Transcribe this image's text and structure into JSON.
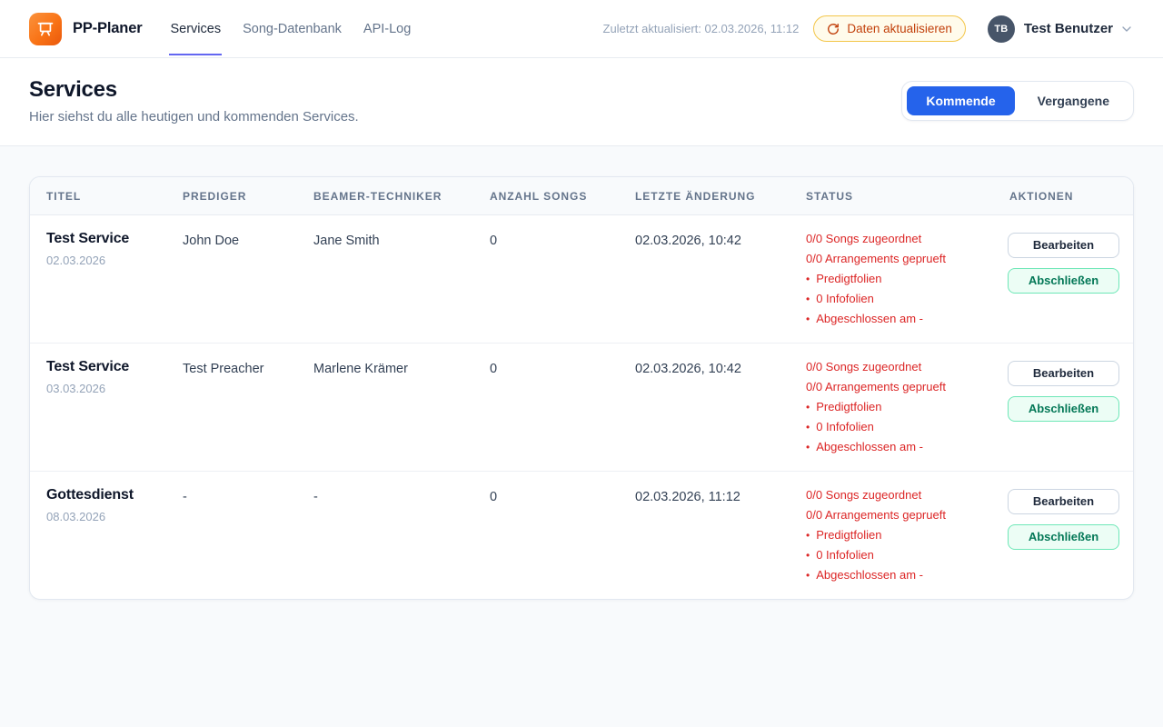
{
  "header": {
    "logo_text": "PP-Planer",
    "nav": [
      {
        "label": "Services",
        "active": true
      },
      {
        "label": "Song-Datenbank",
        "active": false
      },
      {
        "label": "API-Log",
        "active": false
      }
    ],
    "last_updated": "Zuletzt aktualisiert: 02.03.2026, 11:12",
    "refresh_label": "Daten aktualisieren",
    "user": {
      "initials": "TB",
      "name": "Test Benutzer"
    }
  },
  "page": {
    "title": "Services",
    "subtitle": "Hier siehst du alle heutigen und kommenden Services.",
    "filters": [
      {
        "label": "Kommende",
        "active": true
      },
      {
        "label": "Vergangene",
        "active": false
      }
    ]
  },
  "table": {
    "columns": [
      "TITEL",
      "PREDIGER",
      "BEAMER-TECHNIKER",
      "ANZAHL SONGS",
      "LETZTE ÄNDERUNG",
      "STATUS",
      "AKTIONEN"
    ],
    "rows": [
      {
        "title": "Test Service",
        "date": "02.03.2026",
        "preacher": "John Doe",
        "beamer": "Jane Smith",
        "song_count": "0",
        "last_modified": "02.03.2026, 10:42",
        "status": [
          {
            "bullet": false,
            "text": "0/0 Songs zugeordnet"
          },
          {
            "bullet": false,
            "text": "0/0 Arrangements geprueft"
          },
          {
            "bullet": true,
            "text": "Predigtfolien"
          },
          {
            "bullet": true,
            "text": "0 Infofolien"
          },
          {
            "bullet": true,
            "text": "Abgeschlossen am -"
          }
        ],
        "edit_label": "Bearbeiten",
        "complete_label": "Abschließen"
      },
      {
        "title": "Test Service",
        "date": "03.03.2026",
        "preacher": "Test Preacher",
        "beamer": "Marlene Krämer",
        "song_count": "0",
        "last_modified": "02.03.2026, 10:42",
        "status": [
          {
            "bullet": false,
            "text": "0/0 Songs zugeordnet"
          },
          {
            "bullet": false,
            "text": "0/0 Arrangements geprueft"
          },
          {
            "bullet": true,
            "text": "Predigtfolien"
          },
          {
            "bullet": true,
            "text": "0 Infofolien"
          },
          {
            "bullet": true,
            "text": "Abgeschlossen am -"
          }
        ],
        "edit_label": "Bearbeiten",
        "complete_label": "Abschließen"
      },
      {
        "title": "Gottesdienst",
        "date": "08.03.2026",
        "preacher": "-",
        "beamer": "-",
        "song_count": "0",
        "last_modified": "02.03.2026, 11:12",
        "status": [
          {
            "bullet": false,
            "text": "0/0 Songs zugeordnet"
          },
          {
            "bullet": false,
            "text": "0/0 Arrangements geprueft"
          },
          {
            "bullet": true,
            "text": "Predigtfolien"
          },
          {
            "bullet": true,
            "text": "0 Infofolien"
          },
          {
            "bullet": true,
            "text": "Abgeschlossen am -"
          }
        ],
        "edit_label": "Bearbeiten",
        "complete_label": "Abschließen"
      }
    ]
  },
  "colors": {
    "brand_orange": "#f97316",
    "nav_underline_indigo": "#6366f1",
    "refresh_border_amber": "#f3c64a",
    "refresh_text_orange": "#c2410c",
    "active_filter_blue": "#2563eb",
    "status_red": "#dc2626",
    "complete_green_text": "#047857",
    "complete_green_border": "#6ee7b7",
    "complete_green_bg": "#ecfdf5",
    "avatar_slate": "#475569",
    "page_bg": "#f8fafc"
  }
}
